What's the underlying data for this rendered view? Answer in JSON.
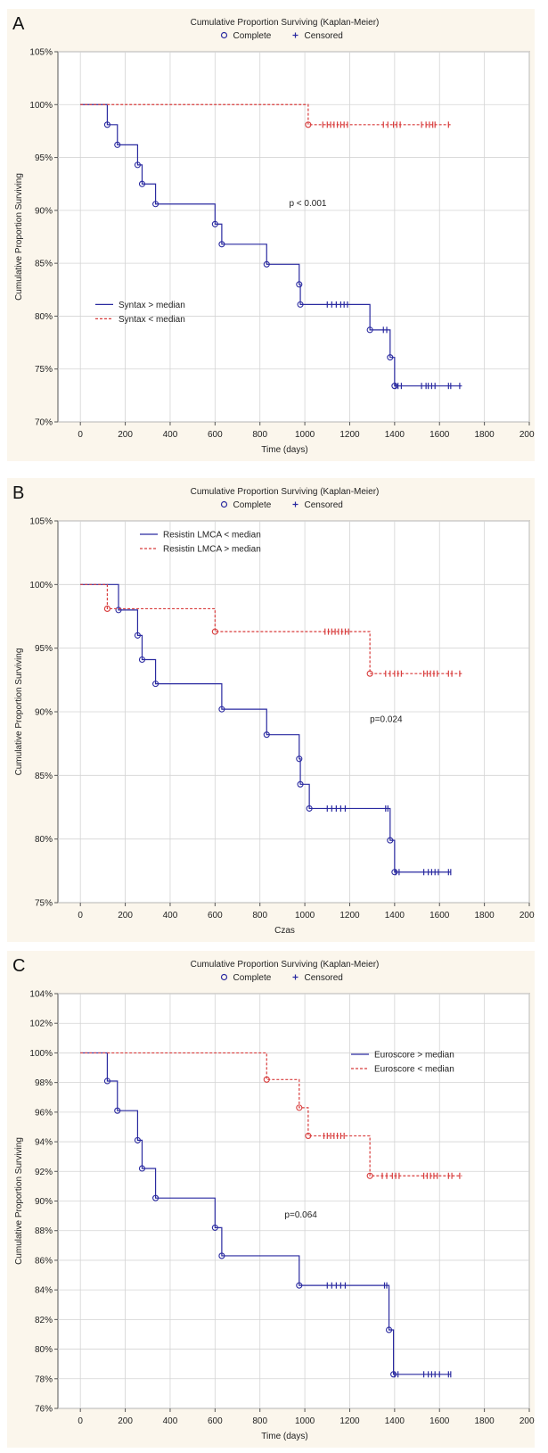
{
  "figure_legend": {
    "complete_symbol_label": "Complete",
    "censored_symbol_label": "Censored"
  },
  "chart_data": [
    {
      "panel": "A",
      "type": "line",
      "subtype": "kaplan-meier-step",
      "title": "Cumulative Proportion Surviving (Kaplan-Meier)",
      "xlabel": "Time (days)",
      "ylabel": "Cumulative Proportion Surviving",
      "xlim": [
        -100,
        2000
      ],
      "ylim": [
        70,
        105
      ],
      "xticks": [
        0,
        200,
        400,
        600,
        800,
        1000,
        1200,
        1400,
        1600,
        1800,
        2000
      ],
      "yticks": [
        70,
        75,
        80,
        85,
        90,
        95,
        100,
        105
      ],
      "tick_format": "percent",
      "grid": true,
      "legend_position": "lower-left",
      "annotation": "p < 0.001",
      "annotation_at": [
        930,
        90.4
      ],
      "series": [
        {
          "name": "Syntax > median",
          "color": "#2a2aa0",
          "dash": "solid",
          "steps": [
            [
              0,
              100
            ],
            [
              120,
              98.1
            ],
            [
              165,
              96.2
            ],
            [
              255,
              94.3
            ],
            [
              275,
              92.5
            ],
            [
              335,
              90.6
            ],
            [
              600,
              88.7
            ],
            [
              630,
              86.8
            ],
            [
              830,
              84.9
            ],
            [
              975,
              83.0
            ],
            [
              980,
              81.1
            ],
            [
              1290,
              78.7
            ],
            [
              1380,
              76.1
            ],
            [
              1400,
              73.4
            ],
            [
              1700,
              73.4
            ]
          ],
          "events": [
            [
              120,
              98.1
            ],
            [
              165,
              96.2
            ],
            [
              255,
              94.3
            ],
            [
              275,
              92.5
            ],
            [
              335,
              90.6
            ],
            [
              600,
              88.7
            ],
            [
              630,
              86.8
            ],
            [
              830,
              84.9
            ],
            [
              975,
              83.0
            ],
            [
              980,
              81.1
            ],
            [
              1290,
              78.7
            ],
            [
              1380,
              76.1
            ],
            [
              1400,
              73.4
            ]
          ],
          "censored": [
            [
              1100,
              81.1
            ],
            [
              1120,
              81.1
            ],
            [
              1140,
              81.1
            ],
            [
              1160,
              81.1
            ],
            [
              1175,
              81.1
            ],
            [
              1190,
              81.1
            ],
            [
              1350,
              78.7
            ],
            [
              1365,
              78.7
            ],
            [
              1405,
              73.4
            ],
            [
              1415,
              73.4
            ],
            [
              1430,
              73.4
            ],
            [
              1520,
              73.4
            ],
            [
              1540,
              73.4
            ],
            [
              1550,
              73.4
            ],
            [
              1565,
              73.4
            ],
            [
              1580,
              73.4
            ],
            [
              1640,
              73.4
            ],
            [
              1650,
              73.4
            ],
            [
              1690,
              73.4
            ]
          ]
        },
        {
          "name": "Syntax < median",
          "color": "#d83c3c",
          "dash": "dashed",
          "steps": [
            [
              0,
              100
            ],
            [
              1015,
              98.1
            ],
            [
              1650,
              98.1
            ]
          ],
          "events": [
            [
              1015,
              98.1
            ]
          ],
          "censored": [
            [
              1080,
              98.1
            ],
            [
              1100,
              98.1
            ],
            [
              1115,
              98.1
            ],
            [
              1130,
              98.1
            ],
            [
              1145,
              98.1
            ],
            [
              1160,
              98.1
            ],
            [
              1175,
              98.1
            ],
            [
              1190,
              98.1
            ],
            [
              1350,
              98.1
            ],
            [
              1370,
              98.1
            ],
            [
              1395,
              98.1
            ],
            [
              1410,
              98.1
            ],
            [
              1425,
              98.1
            ],
            [
              1520,
              98.1
            ],
            [
              1540,
              98.1
            ],
            [
              1555,
              98.1
            ],
            [
              1570,
              98.1
            ],
            [
              1580,
              98.1
            ],
            [
              1640,
              98.1
            ]
          ]
        }
      ]
    },
    {
      "panel": "B",
      "type": "line",
      "subtype": "kaplan-meier-step",
      "title": "Cumulative Proportion Surviving (Kaplan-Meier)",
      "xlabel": "Czas",
      "ylabel": "Cumulative Proportion Surviving",
      "xlim": [
        -100,
        2000
      ],
      "ylim": [
        75,
        105
      ],
      "xticks": [
        0,
        200,
        400,
        600,
        800,
        1000,
        1200,
        1400,
        1600,
        1800,
        2000
      ],
      "yticks": [
        75,
        80,
        85,
        90,
        95,
        100,
        105
      ],
      "tick_format": "percent",
      "grid": true,
      "legend_position": "top-left",
      "annotation": "p=0.024",
      "annotation_at": [
        1290,
        89.2
      ],
      "series": [
        {
          "name": "Resistin LMCA < median",
          "color": "#2a2aa0",
          "dash": "solid",
          "steps": [
            [
              0,
              100
            ],
            [
              170,
              98.0
            ],
            [
              255,
              96.0
            ],
            [
              275,
              94.1
            ],
            [
              335,
              92.2
            ],
            [
              630,
              90.2
            ],
            [
              830,
              88.2
            ],
            [
              975,
              86.3
            ],
            [
              980,
              84.3
            ],
            [
              1020,
              82.4
            ],
            [
              1380,
              79.9
            ],
            [
              1400,
              77.4
            ],
            [
              1650,
              77.4
            ]
          ],
          "events": [
            [
              170,
              98.0
            ],
            [
              255,
              96.0
            ],
            [
              275,
              94.1
            ],
            [
              335,
              92.2
            ],
            [
              630,
              90.2
            ],
            [
              830,
              88.2
            ],
            [
              975,
              86.3
            ],
            [
              980,
              84.3
            ],
            [
              1020,
              82.4
            ],
            [
              1380,
              79.9
            ],
            [
              1400,
              77.4
            ]
          ],
          "censored": [
            [
              1100,
              82.4
            ],
            [
              1120,
              82.4
            ],
            [
              1140,
              82.4
            ],
            [
              1160,
              82.4
            ],
            [
              1180,
              82.4
            ],
            [
              1360,
              82.4
            ],
            [
              1370,
              82.4
            ],
            [
              1405,
              77.4
            ],
            [
              1420,
              77.4
            ],
            [
              1530,
              77.4
            ],
            [
              1550,
              77.4
            ],
            [
              1565,
              77.4
            ],
            [
              1580,
              77.4
            ],
            [
              1595,
              77.4
            ],
            [
              1640,
              77.4
            ],
            [
              1650,
              77.4
            ]
          ]
        },
        {
          "name": "Resistin LMCA > median",
          "color": "#d83c3c",
          "dash": "dashed",
          "steps": [
            [
              0,
              100
            ],
            [
              120,
              98.1
            ],
            [
              600,
              96.3
            ],
            [
              1290,
              93.0
            ],
            [
              1700,
              93.0
            ]
          ],
          "events": [
            [
              120,
              98.1
            ],
            [
              600,
              96.3
            ],
            [
              1290,
              93.0
            ]
          ],
          "censored": [
            [
              1090,
              96.3
            ],
            [
              1105,
              96.3
            ],
            [
              1120,
              96.3
            ],
            [
              1135,
              96.3
            ],
            [
              1150,
              96.3
            ],
            [
              1165,
              96.3
            ],
            [
              1180,
              96.3
            ],
            [
              1195,
              96.3
            ],
            [
              1360,
              93.0
            ],
            [
              1380,
              93.0
            ],
            [
              1400,
              93.0
            ],
            [
              1415,
              93.0
            ],
            [
              1430,
              93.0
            ],
            [
              1530,
              93.0
            ],
            [
              1545,
              93.0
            ],
            [
              1560,
              93.0
            ],
            [
              1575,
              93.0
            ],
            [
              1590,
              93.0
            ],
            [
              1640,
              93.0
            ],
            [
              1655,
              93.0
            ],
            [
              1690,
              93.0
            ]
          ]
        }
      ]
    },
    {
      "panel": "C",
      "type": "line",
      "subtype": "kaplan-meier-step",
      "title": "Cumulative Proportion Surviving (Kaplan-Meier)",
      "xlabel": "Time (days)",
      "ylabel": "Cumulative Proportion Surviving",
      "xlim": [
        -100,
        2000
      ],
      "ylim": [
        76,
        104
      ],
      "xticks": [
        0,
        200,
        400,
        600,
        800,
        1000,
        1200,
        1400,
        1600,
        1800,
        2000
      ],
      "yticks": [
        76,
        78,
        80,
        82,
        84,
        86,
        88,
        90,
        92,
        94,
        96,
        98,
        100,
        102,
        104
      ],
      "tick_format": "percent",
      "grid": true,
      "legend_position": "top-right",
      "annotation": "p=0.064",
      "annotation_at": [
        910,
        88.9
      ],
      "series": [
        {
          "name": "Euroscore > median",
          "color": "#2a2aa0",
          "dash": "solid",
          "steps": [
            [
              0,
              100
            ],
            [
              120,
              98.1
            ],
            [
              165,
              96.1
            ],
            [
              255,
              94.1
            ],
            [
              275,
              92.2
            ],
            [
              335,
              90.2
            ],
            [
              600,
              88.2
            ],
            [
              630,
              86.3
            ],
            [
              975,
              84.3
            ],
            [
              1375,
              81.3
            ],
            [
              1395,
              78.3
            ],
            [
              1650,
              78.3
            ]
          ],
          "events": [
            [
              120,
              98.1
            ],
            [
              165,
              96.1
            ],
            [
              255,
              94.1
            ],
            [
              275,
              92.2
            ],
            [
              335,
              90.2
            ],
            [
              600,
              88.2
            ],
            [
              630,
              86.3
            ],
            [
              975,
              84.3
            ],
            [
              1375,
              81.3
            ],
            [
              1395,
              78.3
            ]
          ],
          "censored": [
            [
              1100,
              84.3
            ],
            [
              1120,
              84.3
            ],
            [
              1140,
              84.3
            ],
            [
              1160,
              84.3
            ],
            [
              1180,
              84.3
            ],
            [
              1355,
              84.3
            ],
            [
              1365,
              84.3
            ],
            [
              1400,
              78.3
            ],
            [
              1415,
              78.3
            ],
            [
              1530,
              78.3
            ],
            [
              1550,
              78.3
            ],
            [
              1565,
              78.3
            ],
            [
              1580,
              78.3
            ],
            [
              1600,
              78.3
            ],
            [
              1640,
              78.3
            ],
            [
              1650,
              78.3
            ]
          ]
        },
        {
          "name": "Euroscore < median",
          "color": "#d83c3c",
          "dash": "dashed",
          "steps": [
            [
              0,
              100
            ],
            [
              830,
              98.2
            ],
            [
              975,
              96.3
            ],
            [
              1015,
              94.4
            ],
            [
              1290,
              91.7
            ],
            [
              1700,
              91.7
            ]
          ],
          "events": [
            [
              830,
              98.2
            ],
            [
              975,
              96.3
            ],
            [
              1015,
              94.4
            ],
            [
              1290,
              91.7
            ]
          ],
          "censored": [
            [
              1085,
              94.4
            ],
            [
              1100,
              94.4
            ],
            [
              1115,
              94.4
            ],
            [
              1130,
              94.4
            ],
            [
              1145,
              94.4
            ],
            [
              1160,
              94.4
            ],
            [
              1175,
              94.4
            ],
            [
              1345,
              91.7
            ],
            [
              1365,
              91.7
            ],
            [
              1390,
              91.7
            ],
            [
              1405,
              91.7
            ],
            [
              1420,
              91.7
            ],
            [
              1530,
              91.7
            ],
            [
              1545,
              91.7
            ],
            [
              1560,
              91.7
            ],
            [
              1575,
              91.7
            ],
            [
              1590,
              91.7
            ],
            [
              1640,
              91.7
            ],
            [
              1655,
              91.7
            ],
            [
              1690,
              91.7
            ]
          ]
        }
      ]
    }
  ]
}
